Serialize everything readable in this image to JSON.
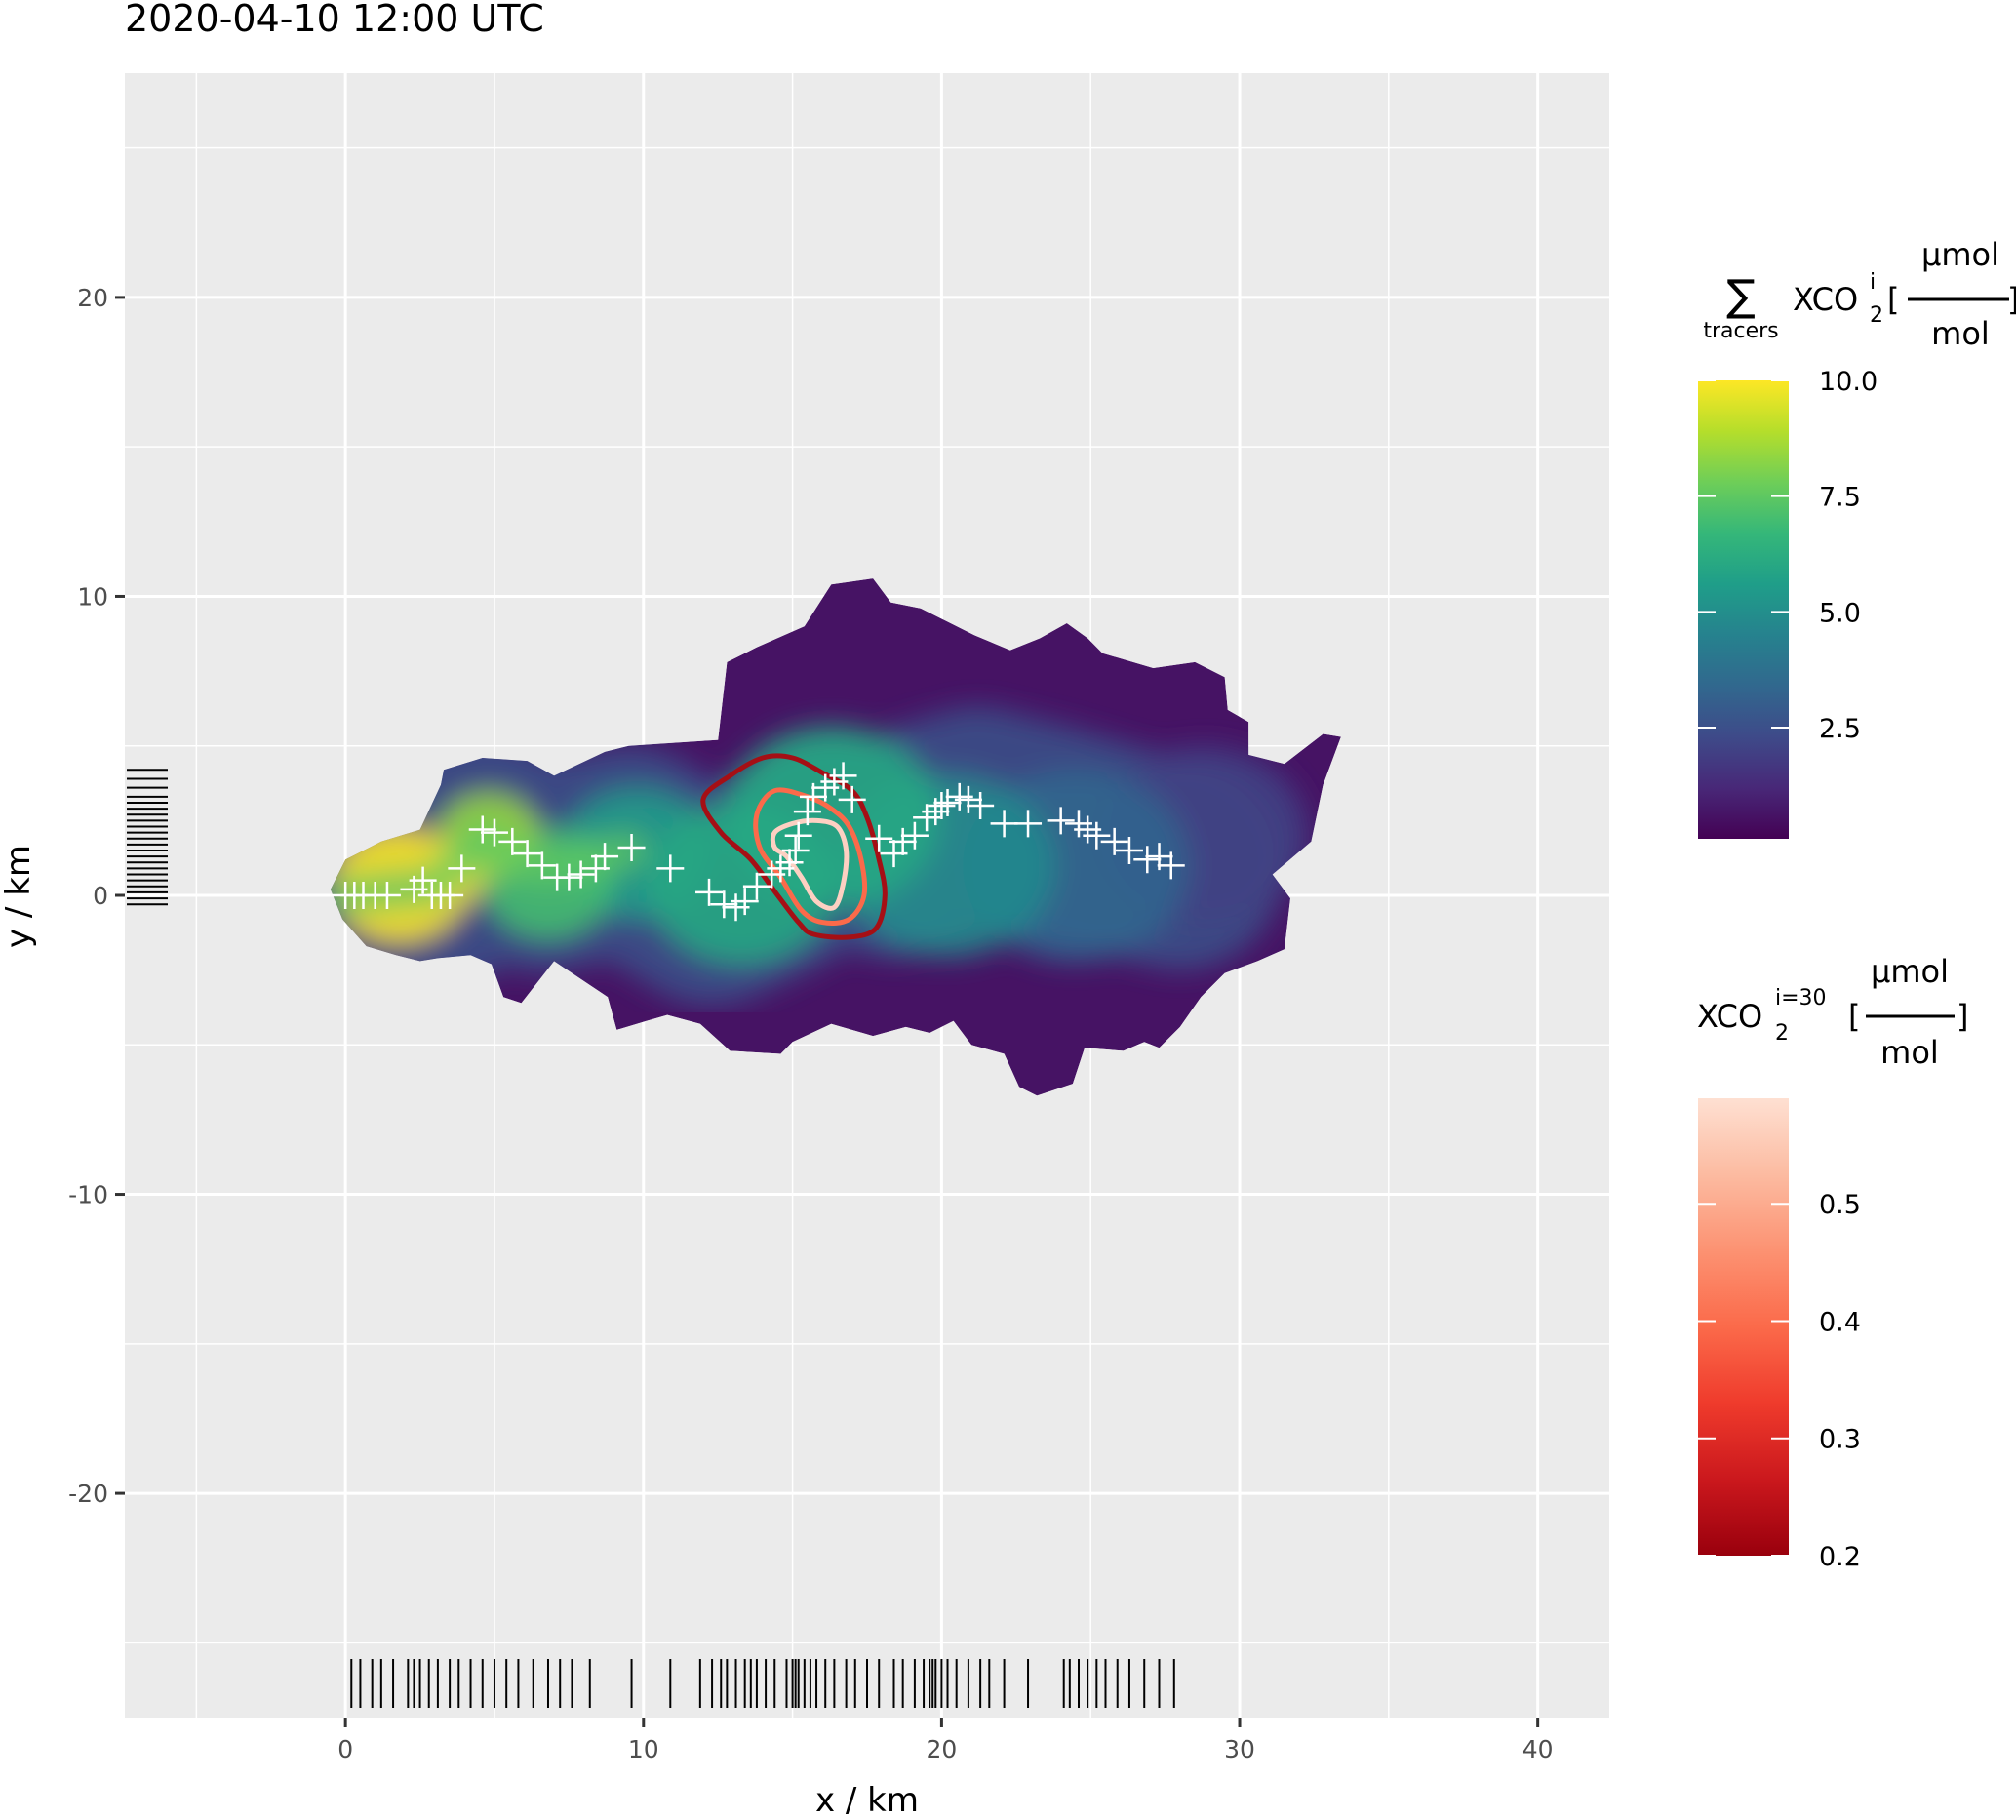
{
  "chart_data": {
    "type": "heatmap",
    "title": "2020-04-10 12:00 UTC",
    "xlabel": "x / km",
    "ylabel": "y / km",
    "xlim": [
      -7.4,
      42.4
    ],
    "ylim": [
      -27.5,
      27.5
    ],
    "x_ticks": [
      0,
      10,
      20,
      30,
      40
    ],
    "y_ticks": [
      20,
      10,
      0,
      -10,
      -20
    ],
    "x_tick_labels": [
      "0",
      "10",
      "20",
      "30",
      "40"
    ],
    "y_tick_labels": [
      "20",
      "10",
      "0",
      "-10",
      "-20"
    ],
    "grid": true,
    "panel_background": "#ebebeb",
    "grid_color": "#ffffff",
    "legends": [
      {
        "id": "sum",
        "title_symbol": "∑",
        "title_sub": "tracers",
        "title_main": "XCO",
        "title_subscript": "2",
        "title_superscript": "i",
        "unit_numerator": "µmol",
        "unit_denominator": "mol",
        "colormap": "viridis",
        "colors": [
          "#440154",
          "#482878",
          "#3e4a89",
          "#31688e",
          "#26828e",
          "#1f9e89",
          "#35b779",
          "#6ece58",
          "#b5de2b",
          "#fde725"
        ],
        "range": [
          0.1,
          10.0
        ],
        "ticks": [
          10.0,
          7.5,
          5.0,
          2.5
        ],
        "tick_labels": [
          "10.0",
          "7.5",
          "5.0",
          "2.5"
        ]
      },
      {
        "id": "single",
        "title_main": "XCO",
        "title_subscript": "2",
        "title_superscript": "i=30",
        "unit_numerator": "µmol",
        "unit_denominator": "mol",
        "colormap": "reds",
        "colors": [
          "#99000d",
          "#cb181d",
          "#ef3b2c",
          "#fb6a4a",
          "#fc9272",
          "#fcbba1",
          "#fee0d2"
        ],
        "range": [
          0.2,
          0.59
        ],
        "ticks": [
          0.5,
          0.4,
          0.3,
          0.2
        ],
        "tick_labels": [
          "0.5",
          "0.4",
          "0.3",
          "0.2"
        ]
      }
    ],
    "plume_outline": [
      [
        -0.5,
        0.2
      ],
      [
        0,
        1.2
      ],
      [
        1.2,
        1.8
      ],
      [
        2.5,
        2.2
      ],
      [
        3.2,
        3.7
      ],
      [
        3.3,
        4.2
      ],
      [
        4.6,
        4.6
      ],
      [
        6.1,
        4.5
      ],
      [
        7,
        4
      ],
      [
        8.7,
        4.8
      ],
      [
        9.5,
        5
      ],
      [
        12.5,
        5.2
      ],
      [
        12.8,
        7.8
      ],
      [
        13.8,
        8.3
      ],
      [
        15.4,
        9
      ],
      [
        16.3,
        10.4
      ],
      [
        17.7,
        10.6
      ],
      [
        18.3,
        9.8
      ],
      [
        19.3,
        9.6
      ],
      [
        20.3,
        9.1
      ],
      [
        21.1,
        8.7
      ],
      [
        22.3,
        8.2
      ],
      [
        23.3,
        8.6
      ],
      [
        24.2,
        9.1
      ],
      [
        24.9,
        8.6
      ],
      [
        25.4,
        8.1
      ],
      [
        27.1,
        7.6
      ],
      [
        28.5,
        7.8
      ],
      [
        29.5,
        7.3
      ],
      [
        29.6,
        6.2
      ],
      [
        30.3,
        5.8
      ],
      [
        30.3,
        4.7
      ],
      [
        31.5,
        4.4
      ],
      [
        32.8,
        5.4
      ],
      [
        33.4,
        5.3
      ],
      [
        32.8,
        3.7
      ],
      [
        32.4,
        1.8
      ],
      [
        31.1,
        0.7
      ],
      [
        31.7,
        -0.1
      ],
      [
        31.5,
        -1.8
      ],
      [
        30.6,
        -2.2
      ],
      [
        29.5,
        -2.6
      ],
      [
        28.7,
        -3.4
      ],
      [
        28,
        -4.4
      ],
      [
        27.3,
        -5.1
      ],
      [
        26.8,
        -4.9
      ],
      [
        26.1,
        -5.2
      ],
      [
        24.8,
        -5.1
      ],
      [
        24.4,
        -6.3
      ],
      [
        23.2,
        -6.7
      ],
      [
        22.6,
        -6.4
      ],
      [
        22.1,
        -5.3
      ],
      [
        21,
        -5
      ],
      [
        20.4,
        -4.2
      ],
      [
        19.6,
        -4.6
      ],
      [
        18.8,
        -4.4
      ],
      [
        17.7,
        -4.7
      ],
      [
        16.3,
        -4.3
      ],
      [
        15,
        -4.9
      ],
      [
        14.6,
        -5.3
      ],
      [
        12.9,
        -5.2
      ],
      [
        11.9,
        -4.3
      ],
      [
        10.8,
        -4
      ],
      [
        10.1,
        -4.2
      ],
      [
        9.1,
        -4.5
      ],
      [
        8.8,
        -3.4
      ],
      [
        8.2,
        -3
      ],
      [
        7,
        -2.2
      ],
      [
        5.9,
        -3.6
      ],
      [
        5.3,
        -3.4
      ],
      [
        4.9,
        -2.3
      ],
      [
        4.2,
        -2
      ],
      [
        3.1,
        -2.1
      ],
      [
        2.5,
        -2.2
      ],
      [
        1.7,
        -2
      ],
      [
        0.7,
        -1.7
      ],
      [
        -0.1,
        -0.8
      ]
    ],
    "plume_ridge": [
      [
        0,
        0
      ],
      [
        3,
        0.3
      ],
      [
        4.6,
        1.9
      ],
      [
        6.6,
        0.9
      ],
      [
        9.5,
        1.5
      ],
      [
        12.3,
        -0.2
      ],
      [
        14.4,
        0.8
      ],
      [
        15.6,
        1.6
      ],
      [
        16.6,
        1.8
      ],
      [
        18.4,
        1.4
      ],
      [
        19.8,
        2.4
      ],
      [
        21.2,
        2.8
      ],
      [
        23.6,
        2.2
      ],
      [
        26,
        1.5
      ],
      [
        28,
        1
      ]
    ],
    "hotspots": [
      {
        "x": 1.8,
        "y": 0.35,
        "r": 2.3,
        "v": 10
      },
      {
        "x": 3.6,
        "y": 0.5,
        "r": 1.0,
        "v": 10
      },
      {
        "x": 4.8,
        "y": 2.0,
        "r": 1.7,
        "v": 8.5
      },
      {
        "x": 6.8,
        "y": 0.4,
        "r": 2.2,
        "v": 7
      },
      {
        "x": 9.8,
        "y": 1.4,
        "r": 2.6,
        "v": 5.5
      },
      {
        "x": 13.3,
        "y": 0.4,
        "r": 3.2,
        "v": 6
      },
      {
        "x": 16.3,
        "y": 2.6,
        "r": 3.6,
        "v": 6
      },
      {
        "x": 20.2,
        "y": 1.0,
        "r": 3.6,
        "v": 4.8
      },
      {
        "x": 24.5,
        "y": 1.0,
        "r": 3.8,
        "v": 3.3
      },
      {
        "x": 28.8,
        "y": 2.0,
        "r": 3.5,
        "v": 2.0
      }
    ],
    "contours": [
      {
        "level": 0.2,
        "color": "#a50f15",
        "points": [
          [
            12,
            3.2
          ],
          [
            12.9,
            4
          ],
          [
            14,
            4.6
          ],
          [
            15,
            4.6
          ],
          [
            16,
            4.1
          ],
          [
            17,
            3.5
          ],
          [
            17.5,
            2.6
          ],
          [
            17.9,
            1.2
          ],
          [
            18.1,
            0
          ],
          [
            17.8,
            -1.1
          ],
          [
            16.9,
            -1.4
          ],
          [
            15.7,
            -1.3
          ],
          [
            15.2,
            -0.9
          ],
          [
            14.5,
            0
          ],
          [
            13.6,
            1.2
          ],
          [
            12.6,
            2.1
          ]
        ]
      },
      {
        "level": 0.4,
        "color": "#fb6a4a",
        "points": [
          [
            13.8,
            2.7
          ],
          [
            14.4,
            3.5
          ],
          [
            15.5,
            3.3
          ],
          [
            16.3,
            2.9
          ],
          [
            16.9,
            2.3
          ],
          [
            17.3,
            1.2
          ],
          [
            17.4,
            0
          ],
          [
            16.9,
            -0.8
          ],
          [
            16,
            -0.9
          ],
          [
            15.3,
            -0.5
          ],
          [
            14.6,
            0.6
          ],
          [
            13.9,
            1.6
          ]
        ]
      },
      {
        "level": 0.5,
        "color": "#fdd0c2",
        "points": [
          [
            14.4,
            2.1
          ],
          [
            15,
            2.4
          ],
          [
            15.8,
            2.5
          ],
          [
            16.5,
            2.3
          ],
          [
            16.8,
            1.5
          ],
          [
            16.7,
            0.4
          ],
          [
            16.4,
            -0.4
          ],
          [
            15.8,
            -0.2
          ],
          [
            15.3,
            0.6
          ],
          [
            14.8,
            1.3
          ],
          [
            14.4,
            1.6
          ]
        ]
      }
    ],
    "points": [
      [
        0,
        0
      ],
      [
        0.3,
        0
      ],
      [
        0.6,
        0
      ],
      [
        1,
        0
      ],
      [
        1.4,
        0
      ],
      [
        2.3,
        0.2
      ],
      [
        2.6,
        0.5
      ],
      [
        2.9,
        0
      ],
      [
        3.2,
        0
      ],
      [
        3.5,
        0
      ],
      [
        3.9,
        0.9
      ],
      [
        4.6,
        2.2
      ],
      [
        5,
        2.1
      ],
      [
        5.6,
        1.8
      ],
      [
        6.1,
        1.4
      ],
      [
        6.6,
        1
      ],
      [
        7.1,
        0.6
      ],
      [
        7.5,
        0.6
      ],
      [
        7.9,
        0.7
      ],
      [
        8.4,
        0.9
      ],
      [
        8.7,
        1.3
      ],
      [
        9.6,
        1.6
      ],
      [
        10.9,
        0.9
      ],
      [
        12.2,
        0.1
      ],
      [
        12.7,
        -0.3
      ],
      [
        13.1,
        -0.4
      ],
      [
        13.4,
        -0.2
      ],
      [
        13.8,
        0.3
      ],
      [
        14.3,
        0.7
      ],
      [
        14.6,
        0.9
      ],
      [
        14.9,
        1.1
      ],
      [
        15.1,
        1.5
      ],
      [
        15.2,
        2
      ],
      [
        15.5,
        2.8
      ],
      [
        15.7,
        3.3
      ],
      [
        16.1,
        3.6
      ],
      [
        16.4,
        3.8
      ],
      [
        16.7,
        4
      ],
      [
        17,
        3.2
      ],
      [
        17.9,
        1.9
      ],
      [
        18.4,
        1.4
      ],
      [
        18.7,
        1.8
      ],
      [
        19.1,
        2
      ],
      [
        19.5,
        2.6
      ],
      [
        19.8,
        2.8
      ],
      [
        20,
        3
      ],
      [
        20.2,
        3.1
      ],
      [
        20.6,
        3.3
      ],
      [
        20.9,
        3.2
      ],
      [
        21.3,
        3
      ],
      [
        22.1,
        2.4
      ],
      [
        22.9,
        2.4
      ],
      [
        24,
        2.5
      ],
      [
        24.6,
        2.4
      ],
      [
        24.9,
        2.2
      ],
      [
        25.2,
        2
      ],
      [
        25.8,
        1.8
      ],
      [
        26.3,
        1.5
      ],
      [
        26.9,
        1.2
      ],
      [
        27.3,
        1.3
      ],
      [
        27.7,
        1
      ]
    ],
    "x_rug": [
      0.2,
      0.5,
      0.9,
      1.2,
      1.6,
      2.1,
      2.3,
      2.5,
      2.8,
      3.1,
      3.5,
      3.8,
      4.2,
      4.6,
      5,
      5.4,
      5.8,
      6.3,
      6.8,
      7.2,
      7.6,
      8.2,
      9.6,
      10.9,
      11.9,
      12.3,
      12.6,
      12.8,
      13.1,
      13.4,
      13.6,
      13.8,
      14.1,
      14.4,
      14.8,
      15,
      15.1,
      15.2,
      15.4,
      15.6,
      15.8,
      16.1,
      16.4,
      16.8,
      17.1,
      17.5,
      17.9,
      18.4,
      18.7,
      19.1,
      19.4,
      19.6,
      19.7,
      19.8,
      20,
      20.2,
      20.5,
      20.9,
      21.3,
      21.6,
      22.1,
      22.9,
      24.1,
      24.3,
      24.6,
      24.9,
      25.2,
      25.5,
      25.9,
      26.3,
      26.8,
      27.3,
      27.8
    ],
    "y_rug": [
      -0.3,
      -0.1,
      0.1,
      0.3,
      0.5,
      0.7,
      0.9,
      1.1,
      1.3,
      1.5,
      1.7,
      1.9,
      2.1,
      2.3,
      2.5,
      2.7,
      2.9,
      3.1,
      3.3,
      3.6,
      3.9,
      4.2
    ],
    "points_color": "#ffffff",
    "rug_color": "#000000"
  }
}
